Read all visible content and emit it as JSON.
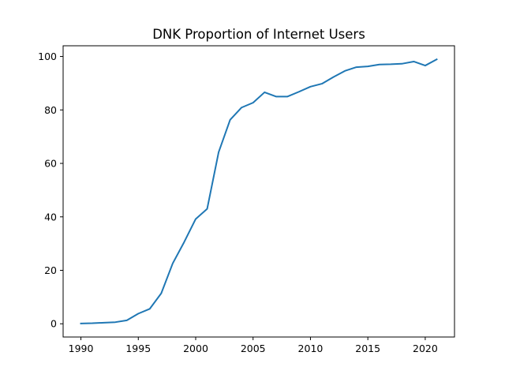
{
  "chart_data": {
    "type": "line",
    "title": "DNK Proportion of Internet Users",
    "xlabel": "",
    "ylabel": "",
    "xlim": [
      1988.45,
      2022.55
    ],
    "ylim": [
      -4.95,
      104.0
    ],
    "x_ticks": [
      1990,
      1995,
      2000,
      2005,
      2010,
      2015,
      2020
    ],
    "y_ticks": [
      0,
      20,
      40,
      60,
      80,
      100
    ],
    "grid": false,
    "legend": "none",
    "series": [
      {
        "color": "#1f77b4",
        "x": [
          1990,
          1991,
          1992,
          1993,
          1994,
          1995,
          1996,
          1997,
          1998,
          1999,
          2000,
          2001,
          2002,
          2003,
          2004,
          2005,
          2006,
          2007,
          2008,
          2009,
          2010,
          2011,
          2012,
          2013,
          2014,
          2015,
          2016,
          2017,
          2018,
          2019,
          2020,
          2021
        ],
        "y": [
          0.1,
          0.2,
          0.4,
          0.6,
          1.3,
          3.8,
          5.6,
          11.4,
          22.6,
          30.6,
          39.2,
          43.0,
          64.2,
          76.3,
          80.9,
          82.7,
          86.6,
          85.0,
          85.0,
          86.8,
          88.7,
          89.8,
          92.3,
          94.6,
          96.0,
          96.3,
          97.0,
          97.1,
          97.3,
          98.1,
          96.6,
          98.9
        ]
      }
    ]
  }
}
